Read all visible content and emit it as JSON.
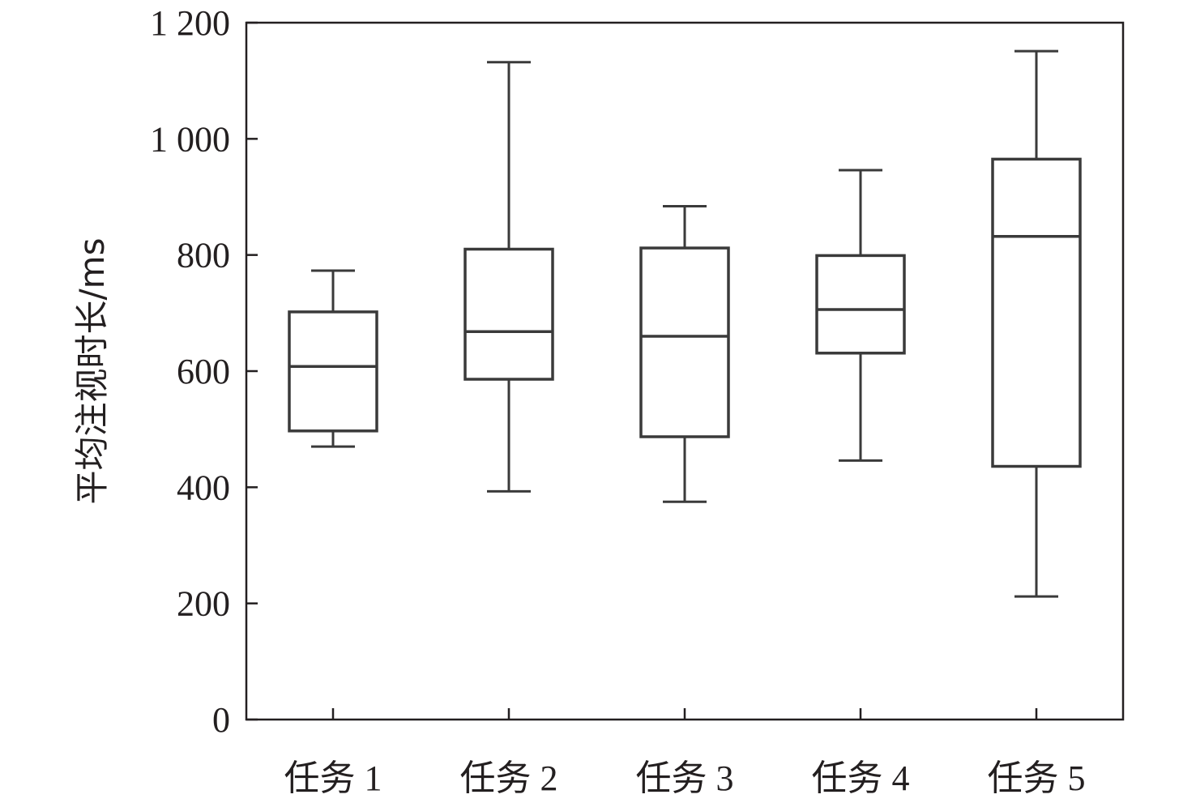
{
  "chart_data": {
    "type": "box",
    "title": "",
    "xlabel": "",
    "ylabel": "平均注视时长/ms",
    "ylim": [
      0,
      1200
    ],
    "yticks": [
      0,
      200,
      400,
      600,
      800,
      1000,
      1200
    ],
    "ytick_labels": [
      "0",
      "200",
      "400",
      "600",
      "800",
      "1 000",
      "1 200"
    ],
    "grid": false,
    "categories": [
      "任务 1",
      "任务 2",
      "任务 3",
      "任务 4",
      "任务 5"
    ],
    "boxes": [
      {
        "category": "任务 1",
        "min": 470,
        "q1": 497,
        "median": 608,
        "q3": 702,
        "max": 773
      },
      {
        "category": "任务 2",
        "min": 393,
        "q1": 586,
        "median": 668,
        "q3": 810,
        "max": 1132
      },
      {
        "category": "任务 3",
        "min": 375,
        "q1": 487,
        "median": 660,
        "q3": 812,
        "max": 884
      },
      {
        "category": "任务 4",
        "min": 446,
        "q1": 631,
        "median": 706,
        "q3": 799,
        "max": 946
      },
      {
        "category": "任务 5",
        "min": 212,
        "q1": 436,
        "median": 832,
        "q3": 965,
        "max": 1151
      }
    ],
    "colors": {
      "stroke": "#3a3a3a",
      "text": "#231f20",
      "axis": "#231f20"
    }
  }
}
